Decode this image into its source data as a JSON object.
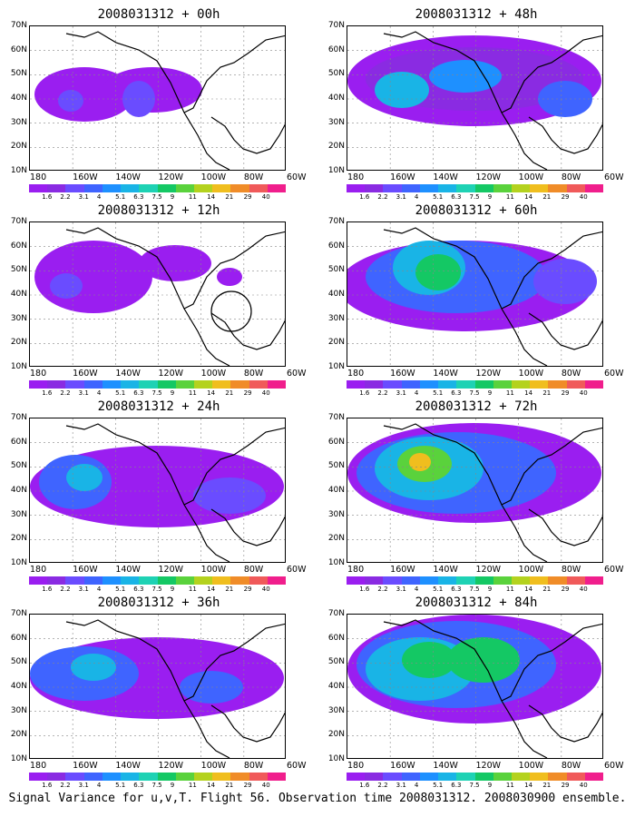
{
  "panels": [
    {
      "title": "2008031312 + 00h"
    },
    {
      "title": "2008031312 + 48h"
    },
    {
      "title": "2008031312 + 12h"
    },
    {
      "title": "2008031312 + 60h"
    },
    {
      "title": "2008031312 + 24h"
    },
    {
      "title": "2008031312 + 72h"
    },
    {
      "title": "2008031312 + 36h"
    },
    {
      "title": "2008031312 + 84h"
    }
  ],
  "y_ticks": [
    "70N",
    "60N",
    "50N",
    "40N",
    "30N",
    "20N",
    "10N"
  ],
  "x_ticks": [
    "180",
    "160W",
    "140W",
    "120W",
    "100W",
    "80W",
    "60W"
  ],
  "colorbar": {
    "labels": [
      "1.6",
      "2.2",
      "3.1",
      "4",
      "5.1",
      "6.3",
      "7.5",
      "9",
      "11",
      "14",
      "21",
      "29",
      "40"
    ],
    "colors": [
      "#9a1ef0",
      "#8a2be2",
      "#6a4cff",
      "#3f64ff",
      "#1e90ff",
      "#19b4e6",
      "#1ed2b4",
      "#14c864",
      "#5ad23c",
      "#b4d21e",
      "#f0be1e",
      "#f08c28",
      "#f05a5a",
      "#f01e8c"
    ]
  },
  "caption": "Signal Variance for u,v,T. Flight 56. Observation time 2008031312. 2008030900 ensemble.",
  "icons": {
    "coastline": "coastline-outline",
    "marker": "flight-circle-marker"
  }
}
